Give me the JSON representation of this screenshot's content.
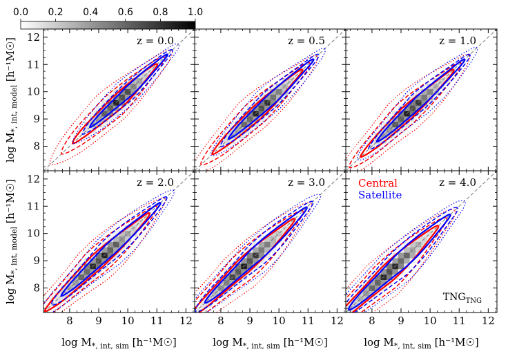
{
  "chart_data": {
    "type": "heatmap",
    "figure_label": "TNG",
    "figure_label_sub": "TNG",
    "colorbar": {
      "ticks": [
        "0.0",
        "0.2",
        "0.4",
        "0.6",
        "0.8",
        "1.0"
      ],
      "range": [
        0,
        1
      ]
    },
    "xlabel": "log M",
    "xlabel_sub": "*, int, sim",
    "xlabel_unit": "[h⁻¹M☉]",
    "ylabel": "log M",
    "ylabel_sub": "*, int, model",
    "ylabel_unit": "[h⁻¹M☉]",
    "xlim": [
      7.1,
      12.3
    ],
    "ylim": [
      7.1,
      12.3
    ],
    "xticks": [
      8,
      9,
      10,
      11,
      12
    ],
    "yticks": [
      8,
      9,
      10,
      11,
      12
    ],
    "legend": [
      {
        "name": "Central",
        "color": "#ff0000"
      },
      {
        "name": "Satellite",
        "color": "#0000ff"
      }
    ],
    "panels": [
      {
        "label": "z = 0.0",
        "range": [
          8.7,
          10.8
        ],
        "cw": [
          0.45,
          0.8,
          1.15
        ],
        "sw": [
          0.32,
          0.55,
          0.85
        ],
        "peak": 1.0
      },
      {
        "label": "z = 0.5",
        "range": [
          8.3,
          10.6
        ],
        "cw": [
          0.45,
          0.8,
          1.15
        ],
        "sw": [
          0.35,
          0.6,
          0.9
        ],
        "peak": 1.0
      },
      {
        "label": "z = 1.0",
        "range": [
          8.2,
          10.6
        ],
        "cw": [
          0.45,
          0.8,
          1.2
        ],
        "sw": [
          0.35,
          0.6,
          0.95
        ],
        "peak": 1.0
      },
      {
        "label": "z = 2.0",
        "range": [
          7.8,
          10.5
        ],
        "cw": [
          0.5,
          0.85,
          1.25
        ],
        "sw": [
          0.4,
          0.7,
          1.05
        ],
        "peak": 1.0
      },
      {
        "label": "z = 3.0",
        "range": [
          7.6,
          10.3
        ],
        "cw": [
          0.5,
          0.9,
          1.3
        ],
        "sw": [
          0.45,
          0.75,
          1.1
        ],
        "peak": 1.0
      },
      {
        "label": "z = 4.0",
        "range": [
          7.4,
          10.0
        ],
        "cw": [
          0.55,
          0.95,
          1.35
        ],
        "sw": [
          0.5,
          0.85,
          1.2
        ],
        "peak": 1.0
      }
    ]
  }
}
